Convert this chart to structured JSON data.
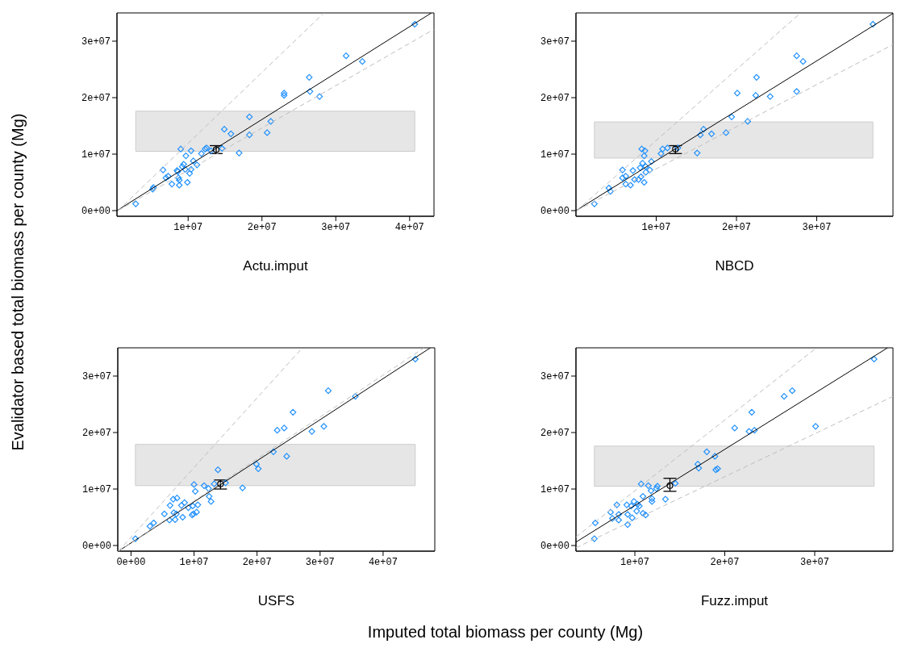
{
  "chart_data": [
    {
      "type": "scatter",
      "xlabel": "Actu.imput",
      "ylabel": "Evalidator based total biomass per county (Mg)",
      "xlim": [
        360000,
        43300000
      ],
      "ylim": [
        -1000000,
        35000000
      ],
      "xticks": [
        {
          "value": 10000000,
          "label": "1e+07"
        },
        {
          "value": 20000000,
          "label": "2e+07"
        },
        {
          "value": 30000000,
          "label": "3e+07"
        },
        {
          "value": 40000000,
          "label": "4e+07"
        }
      ],
      "yticks": [
        {
          "value": 0,
          "label": "0e+00"
        },
        {
          "value": 10000000,
          "label": "1e+07"
        },
        {
          "value": 20000000,
          "label": "2e+07"
        },
        {
          "value": 30000000,
          "label": "3e+07"
        }
      ],
      "bands": [
        {
          "axis": "y",
          "from": 10500000,
          "to": 17600000,
          "color": "#e6e6e6"
        }
      ],
      "series": [
        {
          "color": "#1e90ff",
          "marker": "diamond",
          "x": [
            2900000,
            5200000,
            5300000,
            6600000,
            7000000,
            7300000,
            7800000,
            8500000,
            8600000,
            8700000,
            8800000,
            8800000,
            9000000,
            9200000,
            9400000,
            9600000,
            9700000,
            9900000,
            10200000,
            10400000,
            10400000,
            10700000,
            11200000,
            11800000,
            12300000,
            12500000,
            13100000,
            14600000,
            14900000,
            15800000,
            16900000,
            18300000,
            18300000,
            20700000,
            21200000,
            23000000,
            23000000,
            26400000,
            26500000,
            27800000,
            31400000,
            33600000,
            40700000
          ],
          "values": [
            1200000,
            3800000,
            4100000,
            7200000,
            5800000,
            6100000,
            4700000,
            7100000,
            6900000,
            5800000,
            5400000,
            4500000,
            10900000,
            7800000,
            8200000,
            7300000,
            9700000,
            5000000,
            6600000,
            10600000,
            7300000,
            8800000,
            8100000,
            10100000,
            10900000,
            11100000,
            10600000,
            11000000,
            14400000,
            13600000,
            10200000,
            16600000,
            13400000,
            13800000,
            15800000,
            20800000,
            20400000,
            23600000,
            21100000,
            20200000,
            27400000,
            26400000,
            33000000
          ]
        },
        {
          "color": "#000000",
          "marker": "circle",
          "x": [
            13800000
          ],
          "values": [
            10800000
          ],
          "errors": [
            [
              10100000,
              11500000
            ]
          ]
        },
        {
          "type": "line",
          "color": "#000000",
          "x": [
            360000,
            42960000
          ],
          "values": [
            0,
            35000000
          ]
        },
        {
          "type": "line",
          "color": "#bebebe",
          "line_style": "dashed",
          "x": [
            500000,
            28400000
          ],
          "values": [
            0,
            35000000
          ]
        },
        {
          "type": "line",
          "color": "#bebebe",
          "line_style": "dashed",
          "x": [
            500000,
            43300000
          ],
          "values": [
            0,
            32100000
          ]
        }
      ]
    },
    {
      "type": "scatter",
      "xlabel": "NBCD",
      "xlim": [
        0,
        39500000
      ],
      "ylim": [
        -1000000,
        35000000
      ],
      "xticks": [
        {
          "value": 10000000,
          "label": "1e+07"
        },
        {
          "value": 20000000,
          "label": "2e+07"
        },
        {
          "value": 30000000,
          "label": "3e+07"
        }
      ],
      "yticks": [
        {
          "value": 0,
          "label": "0e+00"
        },
        {
          "value": 10000000,
          "label": "1e+07"
        },
        {
          "value": 20000000,
          "label": "2e+07"
        },
        {
          "value": 30000000,
          "label": "3e+07"
        }
      ],
      "bands": [
        {
          "axis": "y",
          "from": 9300000,
          "to": 15700000,
          "color": "#e6e6e6"
        }
      ],
      "series": [
        {
          "color": "#1e90ff",
          "marker": "diamond",
          "x": [
            2300000,
            4100000,
            4300000,
            5800000,
            5800000,
            6200000,
            6200000,
            6800000,
            7100000,
            7300000,
            7800000,
            8000000,
            8100000,
            8200000,
            8300000,
            8500000,
            8600000,
            8500000,
            8700000,
            8700000,
            9200000,
            9400000,
            10600000,
            10800000,
            11400000,
            12700000,
            15100000,
            15500000,
            15900000,
            16900000,
            18700000,
            19400000,
            20100000,
            21400000,
            22400000,
            22500000,
            24200000,
            27500000,
            27500000,
            28300000,
            37000000
          ],
          "values": [
            1200000,
            4000000,
            3400000,
            7200000,
            5800000,
            6100000,
            4700000,
            4500000,
            7100000,
            5500000,
            5500000,
            7600000,
            6000000,
            10900000,
            8400000,
            9700000,
            10600000,
            5000000,
            7800000,
            6800000,
            7200000,
            8700000,
            10100000,
            10900000,
            11100000,
            11100000,
            10200000,
            13400000,
            14400000,
            13600000,
            13800000,
            16600000,
            20800000,
            15800000,
            20400000,
            23600000,
            20200000,
            27400000,
            21100000,
            26400000,
            33000000
          ]
        },
        {
          "color": "#000000",
          "marker": "circle",
          "x": [
            12400000
          ],
          "values": [
            10900000
          ],
          "errors": [
            [
              10100000,
              11500000
            ]
          ]
        },
        {
          "type": "line",
          "color": "#000000",
          "x": [
            0,
            39500000
          ],
          "values": [
            0,
            34900000
          ]
        },
        {
          "type": "line",
          "color": "#bebebe",
          "line_style": "dashed",
          "x": [
            100000,
            28000000
          ],
          "values": [
            0,
            35000000
          ]
        },
        {
          "type": "line",
          "color": "#bebebe",
          "line_style": "dashed",
          "x": [
            100000,
            39500000
          ],
          "values": [
            0,
            29400000
          ]
        }
      ]
    },
    {
      "type": "scatter",
      "xlabel": "USFS",
      "xlim": [
        -2100000,
        48200000
      ],
      "ylim": [
        -1000000,
        35000000
      ],
      "xticks": [
        {
          "value": 0,
          "label": "0e+00"
        },
        {
          "value": 10000000,
          "label": "1e+07"
        },
        {
          "value": 20000000,
          "label": "2e+07"
        },
        {
          "value": 30000000,
          "label": "3e+07"
        },
        {
          "value": 40000000,
          "label": "4e+07"
        }
      ],
      "yticks": [
        {
          "value": 0,
          "label": "0e+00"
        },
        {
          "value": 10000000,
          "label": "1e+07"
        },
        {
          "value": 20000000,
          "label": "2e+07"
        },
        {
          "value": 30000000,
          "label": "3e+07"
        }
      ],
      "bands": [
        {
          "axis": "y",
          "from": 10600000,
          "to": 17900000,
          "color": "#e6e6e6"
        }
      ],
      "series": [
        {
          "color": "#1e90ff",
          "marker": "diamond",
          "x": [
            700000,
            3000000,
            3600000,
            5300000,
            6100000,
            6200000,
            6700000,
            6800000,
            7000000,
            7300000,
            7200000,
            8000000,
            8200000,
            8500000,
            9100000,
            9700000,
            9800000,
            10000000,
            10200000,
            9900000,
            10400000,
            10600000,
            11600000,
            12300000,
            12400000,
            12700000,
            13200000,
            13800000,
            15000000,
            17700000,
            19900000,
            20200000,
            22600000,
            23200000,
            24300000,
            24700000,
            25700000,
            28700000,
            30600000,
            31300000,
            35600000,
            45100000
          ],
          "values": [
            1200000,
            3400000,
            4000000,
            5600000,
            4500000,
            7100000,
            8200000,
            5800000,
            4600000,
            8400000,
            5600000,
            7100000,
            5000000,
            7600000,
            6700000,
            5400000,
            7000000,
            10800000,
            9600000,
            5600000,
            5900000,
            7200000,
            10600000,
            10100000,
            8700000,
            7800000,
            10900000,
            13400000,
            11100000,
            10200000,
            14400000,
            13600000,
            16600000,
            20400000,
            20800000,
            15800000,
            23600000,
            20200000,
            21100000,
            27400000,
            26400000,
            33000000
          ]
        },
        {
          "color": "#000000",
          "marker": "circle",
          "x": [
            14200000
          ],
          "values": [
            10900000
          ],
          "errors": [
            [
              10000000,
              11600000
            ]
          ]
        },
        {
          "type": "line",
          "color": "#000000",
          "x": [
            -2000000,
            47500000
          ],
          "values": [
            -1000000,
            35000000
          ]
        },
        {
          "type": "line",
          "color": "#bebebe",
          "line_style": "dashed",
          "x": [
            -2000000,
            27200000
          ],
          "values": [
            -1000000,
            35000000
          ]
        },
        {
          "type": "line",
          "color": "#bebebe",
          "line_style": "dashed",
          "x": [
            -2000000,
            46500000
          ],
          "values": [
            -1000000,
            35000000
          ]
        }
      ]
    },
    {
      "type": "scatter",
      "xlabel": "Fuzz.imput",
      "annotations": [
        "Imputed total biomass per county (Mg)"
      ],
      "xlim": [
        3450000,
        38700000
      ],
      "ylim": [
        -1000000,
        35000000
      ],
      "xticks": [
        {
          "value": 10000000,
          "label": "1e+07"
        },
        {
          "value": 20000000,
          "label": "2e+07"
        },
        {
          "value": 30000000,
          "label": "3e+07"
        }
      ],
      "yticks": [
        {
          "value": 0,
          "label": "0e+00"
        },
        {
          "value": 10000000,
          "label": "1e+07"
        },
        {
          "value": 20000000,
          "label": "2e+07"
        },
        {
          "value": 30000000,
          "label": "3e+07"
        }
      ],
      "bands": [
        {
          "axis": "y",
          "from": 10500000,
          "to": 17600000,
          "color": "#e6e6e6"
        }
      ],
      "series": [
        {
          "color": "#1e90ff",
          "marker": "diamond",
          "x": [
            5500000,
            5600000,
            7300000,
            7500000,
            8000000,
            8200000,
            8200000,
            9100000,
            9200000,
            9200000,
            9600000,
            9700000,
            9900000,
            10200000,
            10300000,
            10500000,
            10700000,
            10900000,
            10900000,
            11200000,
            11500000,
            11800000,
            11900000,
            11900000,
            12400000,
            12500000,
            13400000,
            14500000,
            17000000,
            17100000,
            18000000,
            18900000,
            19000000,
            19200000,
            21100000,
            22700000,
            23300000,
            23000000,
            26600000,
            27500000,
            30100000,
            36600000
          ],
          "values": [
            1200000,
            4000000,
            5900000,
            4800000,
            7200000,
            4500000,
            5500000,
            7200000,
            3700000,
            5500000,
            7000000,
            4900000,
            7800000,
            6100000,
            7300000,
            7000000,
            10900000,
            8700000,
            5700000,
            5400000,
            10600000,
            9700000,
            8300000,
            7800000,
            10100000,
            10500000,
            8200000,
            11000000,
            14400000,
            13700000,
            16600000,
            15800000,
            13400000,
            13600000,
            20800000,
            20200000,
            20400000,
            23600000,
            26400000,
            27400000,
            21100000,
            33000000
          ]
        },
        {
          "color": "#000000",
          "marker": "circle",
          "x": [
            13900000
          ],
          "values": [
            10600000
          ],
          "errors": [
            [
              9600000,
              11900000
            ]
          ]
        },
        {
          "type": "line",
          "color": "#000000",
          "x": [
            3450000,
            38100000
          ],
          "values": [
            600000,
            35000000
          ]
        },
        {
          "type": "line",
          "color": "#bebebe",
          "line_style": "dashed",
          "x": [
            3450000,
            30200000
          ],
          "values": [
            1500000,
            35000000
          ]
        },
        {
          "type": "line",
          "color": "#bebebe",
          "line_style": "dashed",
          "x": [
            3450000,
            38700000
          ],
          "values": [
            -400000,
            26400000
          ]
        }
      ]
    }
  ]
}
